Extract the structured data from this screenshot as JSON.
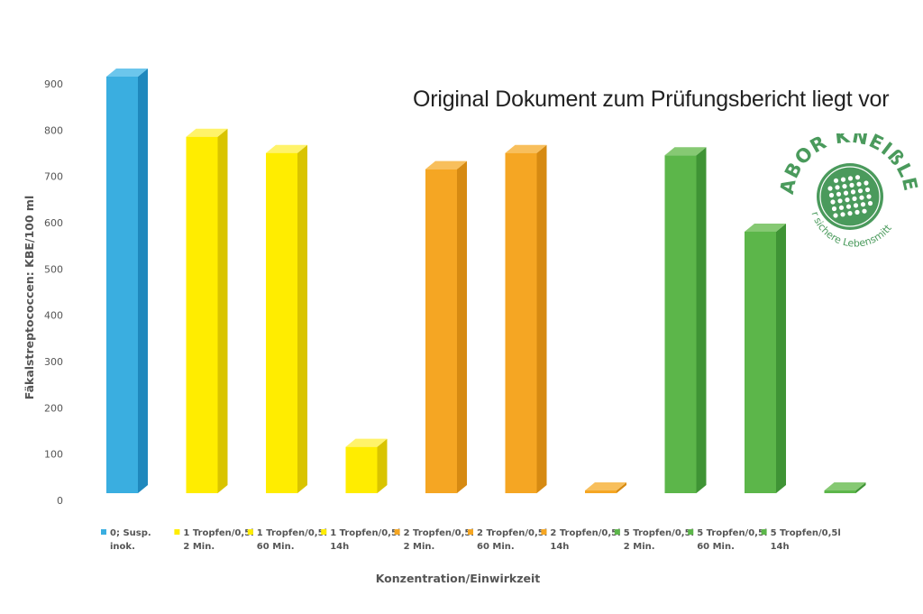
{
  "notice": "Original Dokument zum Prüfungsbericht liegt vor",
  "logo": {
    "name": "LABOR KNEIßLER",
    "slogan": "für sichere Lebensmittel",
    "color": "#4a9a5c"
  },
  "chart_data": {
    "type": "bar",
    "title": "",
    "xlabel": "Konzentration/Einwirkzeit",
    "ylabel": "Fäkalstreptococcen: KBE/100 ml",
    "ylim": [
      0,
      900
    ],
    "yticks": [
      0,
      100,
      200,
      300,
      400,
      500,
      600,
      700,
      800,
      900
    ],
    "grid": false,
    "legend": "bottom",
    "categories": [
      [
        "0; Susp.",
        "inok."
      ],
      [
        "1 Tropfen/0,5l",
        "2 Min."
      ],
      [
        "1 Tropfen/0,5l",
        "60 Min."
      ],
      [
        "1 Tropfen/0,5l",
        "14h"
      ],
      [
        "2 Tropfen/0,5l",
        "2 Min."
      ],
      [
        "2 Tropfen/0,5l",
        "60 Min."
      ],
      [
        "2 Tropfen/0,5l",
        "14h"
      ],
      [
        "5 Tropfen/0,5l",
        "2 Min."
      ],
      [
        "5 Tropfen/0,5l",
        "60 Min."
      ],
      [
        "5 Tropfen/0,5l",
        "14h"
      ]
    ],
    "values": [
      900,
      770,
      735,
      100,
      700,
      735,
      0,
      730,
      565,
      0
    ],
    "colors": [
      "#3aaee0",
      "#ffed00",
      "#ffed00",
      "#ffed00",
      "#f5a623",
      "#f5a623",
      "#f5a623",
      "#5cb64a",
      "#5cb64a",
      "#5cb64a"
    ],
    "side_colors": [
      "#1f88bd",
      "#d9c400",
      "#d9c400",
      "#d9c400",
      "#d68a12",
      "#d68a12",
      "#d68a12",
      "#3f9435",
      "#3f9435",
      "#3f9435"
    ],
    "top_colors": [
      "#6cc6ec",
      "#fff36a",
      "#fff36a",
      "#fff36a",
      "#f8bf5c",
      "#f8bf5c",
      "#f8bf5c",
      "#86c973",
      "#86c973",
      "#86c973"
    ]
  }
}
